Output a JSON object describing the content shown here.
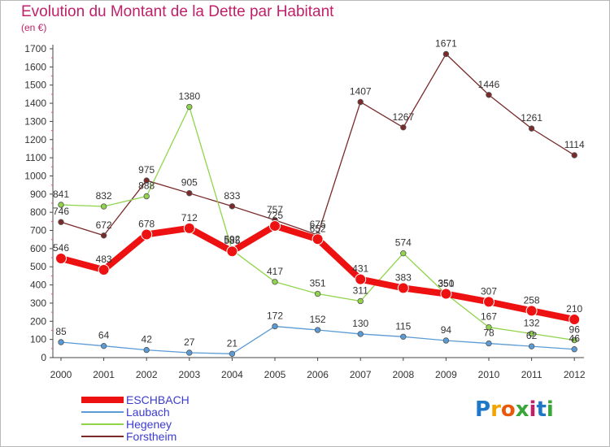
{
  "title": "Evolution du Montant de la Dette par Habitant",
  "subtitle": "(en €)",
  "logo": [
    "P",
    "r",
    "o",
    "x",
    "i",
    "t",
    "i"
  ],
  "logo_colors": [
    "#1f77c8",
    "#f2a400",
    "#e8590c",
    "#3aa63a",
    "#c0206a",
    "#1f77c8",
    "#3aa63a"
  ],
  "chart_data": {
    "type": "line",
    "x": [
      "2000",
      "2001",
      "2002",
      "2003",
      "2004",
      "2005",
      "2006",
      "2007",
      "2008",
      "2009",
      "2010",
      "2011",
      "2012"
    ],
    "ylim": [
      0,
      1700
    ],
    "yticks": [
      0,
      100,
      200,
      300,
      400,
      500,
      600,
      700,
      800,
      900,
      1000,
      1100,
      1200,
      1300,
      1400,
      1500,
      1600,
      1700
    ],
    "grid": false,
    "legend_position": "bottom-left",
    "series": [
      {
        "name": "Forstheim",
        "color": "#7a2a2a",
        "values": [
          746,
          672,
          975,
          905,
          833,
          757,
          675,
          1407,
          1267,
          1671,
          1446,
          1261,
          1114
        ]
      },
      {
        "name": "Hegeney",
        "color": "#8fd44a",
        "values": [
          841,
          832,
          888,
          1380,
          592,
          417,
          351,
          311,
          574,
          350,
          167,
          132,
          96
        ]
      },
      {
        "name": "Laubach",
        "color": "#5b9bd5",
        "values": [
          85,
          64,
          42,
          27,
          21,
          172,
          152,
          130,
          115,
          94,
          78,
          62,
          46
        ]
      },
      {
        "name": "ESCHBACH",
        "color": "#ee1111",
        "values": [
          546,
          483,
          678,
          712,
          585,
          725,
          652,
          431,
          383,
          351,
          307,
          258,
          210
        ]
      }
    ],
    "data_labels": {
      "Forstheim": [
        "746",
        "672",
        "975",
        "905",
        "833",
        "757",
        "675",
        "1407",
        "1267",
        "1671",
        "1446",
        "1261",
        "1114"
      ],
      "Hegeney": [
        "841",
        "832",
        "888",
        "1380",
        "592",
        "417",
        "351",
        "311",
        "574",
        "350",
        "167",
        "132",
        "96"
      ],
      "Laubach": [
        "85",
        "64",
        "42",
        "27",
        "21",
        "172",
        "152",
        "130",
        "115",
        "94",
        "78",
        "62",
        "46"
      ],
      "ESCHBACH": [
        "546",
        "483",
        "678",
        "712",
        "585",
        "725",
        "652",
        "431",
        "383",
        "351",
        "307",
        "258",
        "210"
      ]
    },
    "legend": [
      "ESCHBACH",
      "Laubach",
      "Hegeney",
      "Forstheim"
    ]
  }
}
